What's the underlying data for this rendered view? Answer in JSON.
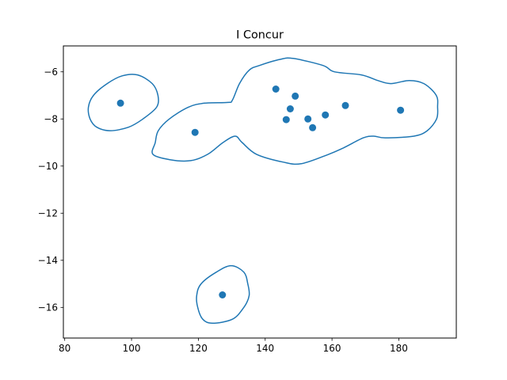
{
  "chart_data": {
    "type": "scatter",
    "title": "I Concur",
    "xlabel": "",
    "ylabel": "",
    "xlim": [
      79.6,
      197.2
    ],
    "ylim": [
      -17.3,
      -4.9
    ],
    "xticks": [
      80,
      100,
      120,
      140,
      160,
      180
    ],
    "yticks": [
      -16,
      -14,
      -12,
      -10,
      -8,
      -6
    ],
    "xtick_labels": [
      "80",
      "100",
      "120",
      "140",
      "160",
      "180"
    ],
    "ytick_labels": [
      "−16",
      "−14",
      "−12",
      "−10",
      "−8",
      "−6"
    ],
    "grid": false,
    "legend": "none",
    "color": "#1f77b4",
    "points": [
      {
        "x": 96.7,
        "y": -7.33
      },
      {
        "x": 119.0,
        "y": -8.57
      },
      {
        "x": 127.2,
        "y": -15.47
      },
      {
        "x": 143.2,
        "y": -6.73
      },
      {
        "x": 146.3,
        "y": -8.03
      },
      {
        "x": 147.5,
        "y": -7.57
      },
      {
        "x": 149.0,
        "y": -7.03
      },
      {
        "x": 152.8,
        "y": -8.0
      },
      {
        "x": 154.2,
        "y": -8.37
      },
      {
        "x": 158.0,
        "y": -7.83
      },
      {
        "x": 164.0,
        "y": -7.43
      },
      {
        "x": 180.5,
        "y": -7.63
      }
    ],
    "contours": [
      [
        [
          103.4,
          -8.0
        ],
        [
          99.1,
          -8.35
        ],
        [
          93.6,
          -8.5
        ],
        [
          89.6,
          -8.35
        ],
        [
          87.6,
          -8.0
        ],
        [
          87.1,
          -7.5
        ],
        [
          88.6,
          -7.0
        ],
        [
          92.7,
          -6.5
        ],
        [
          97.2,
          -6.17
        ],
        [
          101.8,
          -6.13
        ],
        [
          106.2,
          -6.5
        ],
        [
          107.9,
          -7.0
        ],
        [
          107.5,
          -7.5
        ],
        [
          103.4,
          -8.0
        ]
      ],
      [
        [
          106.4,
          -9.5
        ],
        [
          111.5,
          -9.73
        ],
        [
          117.7,
          -9.77
        ],
        [
          122.8,
          -9.5
        ],
        [
          127.4,
          -9.0
        ],
        [
          131.0,
          -8.73
        ],
        [
          133.1,
          -9.0
        ],
        [
          137.4,
          -9.5
        ],
        [
          145.3,
          -9.83
        ],
        [
          150.8,
          -9.9
        ],
        [
          159.0,
          -9.5
        ],
        [
          163.4,
          -9.23
        ],
        [
          169.4,
          -8.8
        ],
        [
          172.5,
          -8.73
        ],
        [
          175.9,
          -8.8
        ],
        [
          184.5,
          -8.73
        ],
        [
          188.5,
          -8.5
        ],
        [
          191.3,
          -8.0
        ],
        [
          191.6,
          -7.5
        ],
        [
          191.2,
          -7.0
        ],
        [
          187.5,
          -6.5
        ],
        [
          183.1,
          -6.37
        ],
        [
          177.6,
          -6.5
        ],
        [
          173.7,
          -6.37
        ],
        [
          168.8,
          -6.13
        ],
        [
          160.7,
          -6.0
        ],
        [
          157.3,
          -5.73
        ],
        [
          148.4,
          -5.43
        ],
        [
          144.5,
          -5.47
        ],
        [
          138.3,
          -5.73
        ],
        [
          135.2,
          -5.93
        ],
        [
          132.3,
          -6.5
        ],
        [
          130.2,
          -7.2
        ],
        [
          128.8,
          -7.3
        ],
        [
          121.9,
          -7.33
        ],
        [
          117.0,
          -7.5
        ],
        [
          111.3,
          -8.0
        ],
        [
          108.0,
          -8.5
        ],
        [
          107.1,
          -9.0
        ],
        [
          106.4,
          -9.5
        ]
      ],
      [
        [
          124.2,
          -16.67
        ],
        [
          130.2,
          -16.5
        ],
        [
          133.6,
          -16.0
        ],
        [
          135.2,
          -15.5
        ],
        [
          134.8,
          -15.0
        ],
        [
          133.6,
          -14.5
        ],
        [
          129.8,
          -14.23
        ],
        [
          125.4,
          -14.5
        ],
        [
          120.8,
          -15.0
        ],
        [
          119.5,
          -15.5
        ],
        [
          119.8,
          -16.0
        ],
        [
          121.3,
          -16.5
        ],
        [
          124.2,
          -16.67
        ]
      ]
    ]
  }
}
